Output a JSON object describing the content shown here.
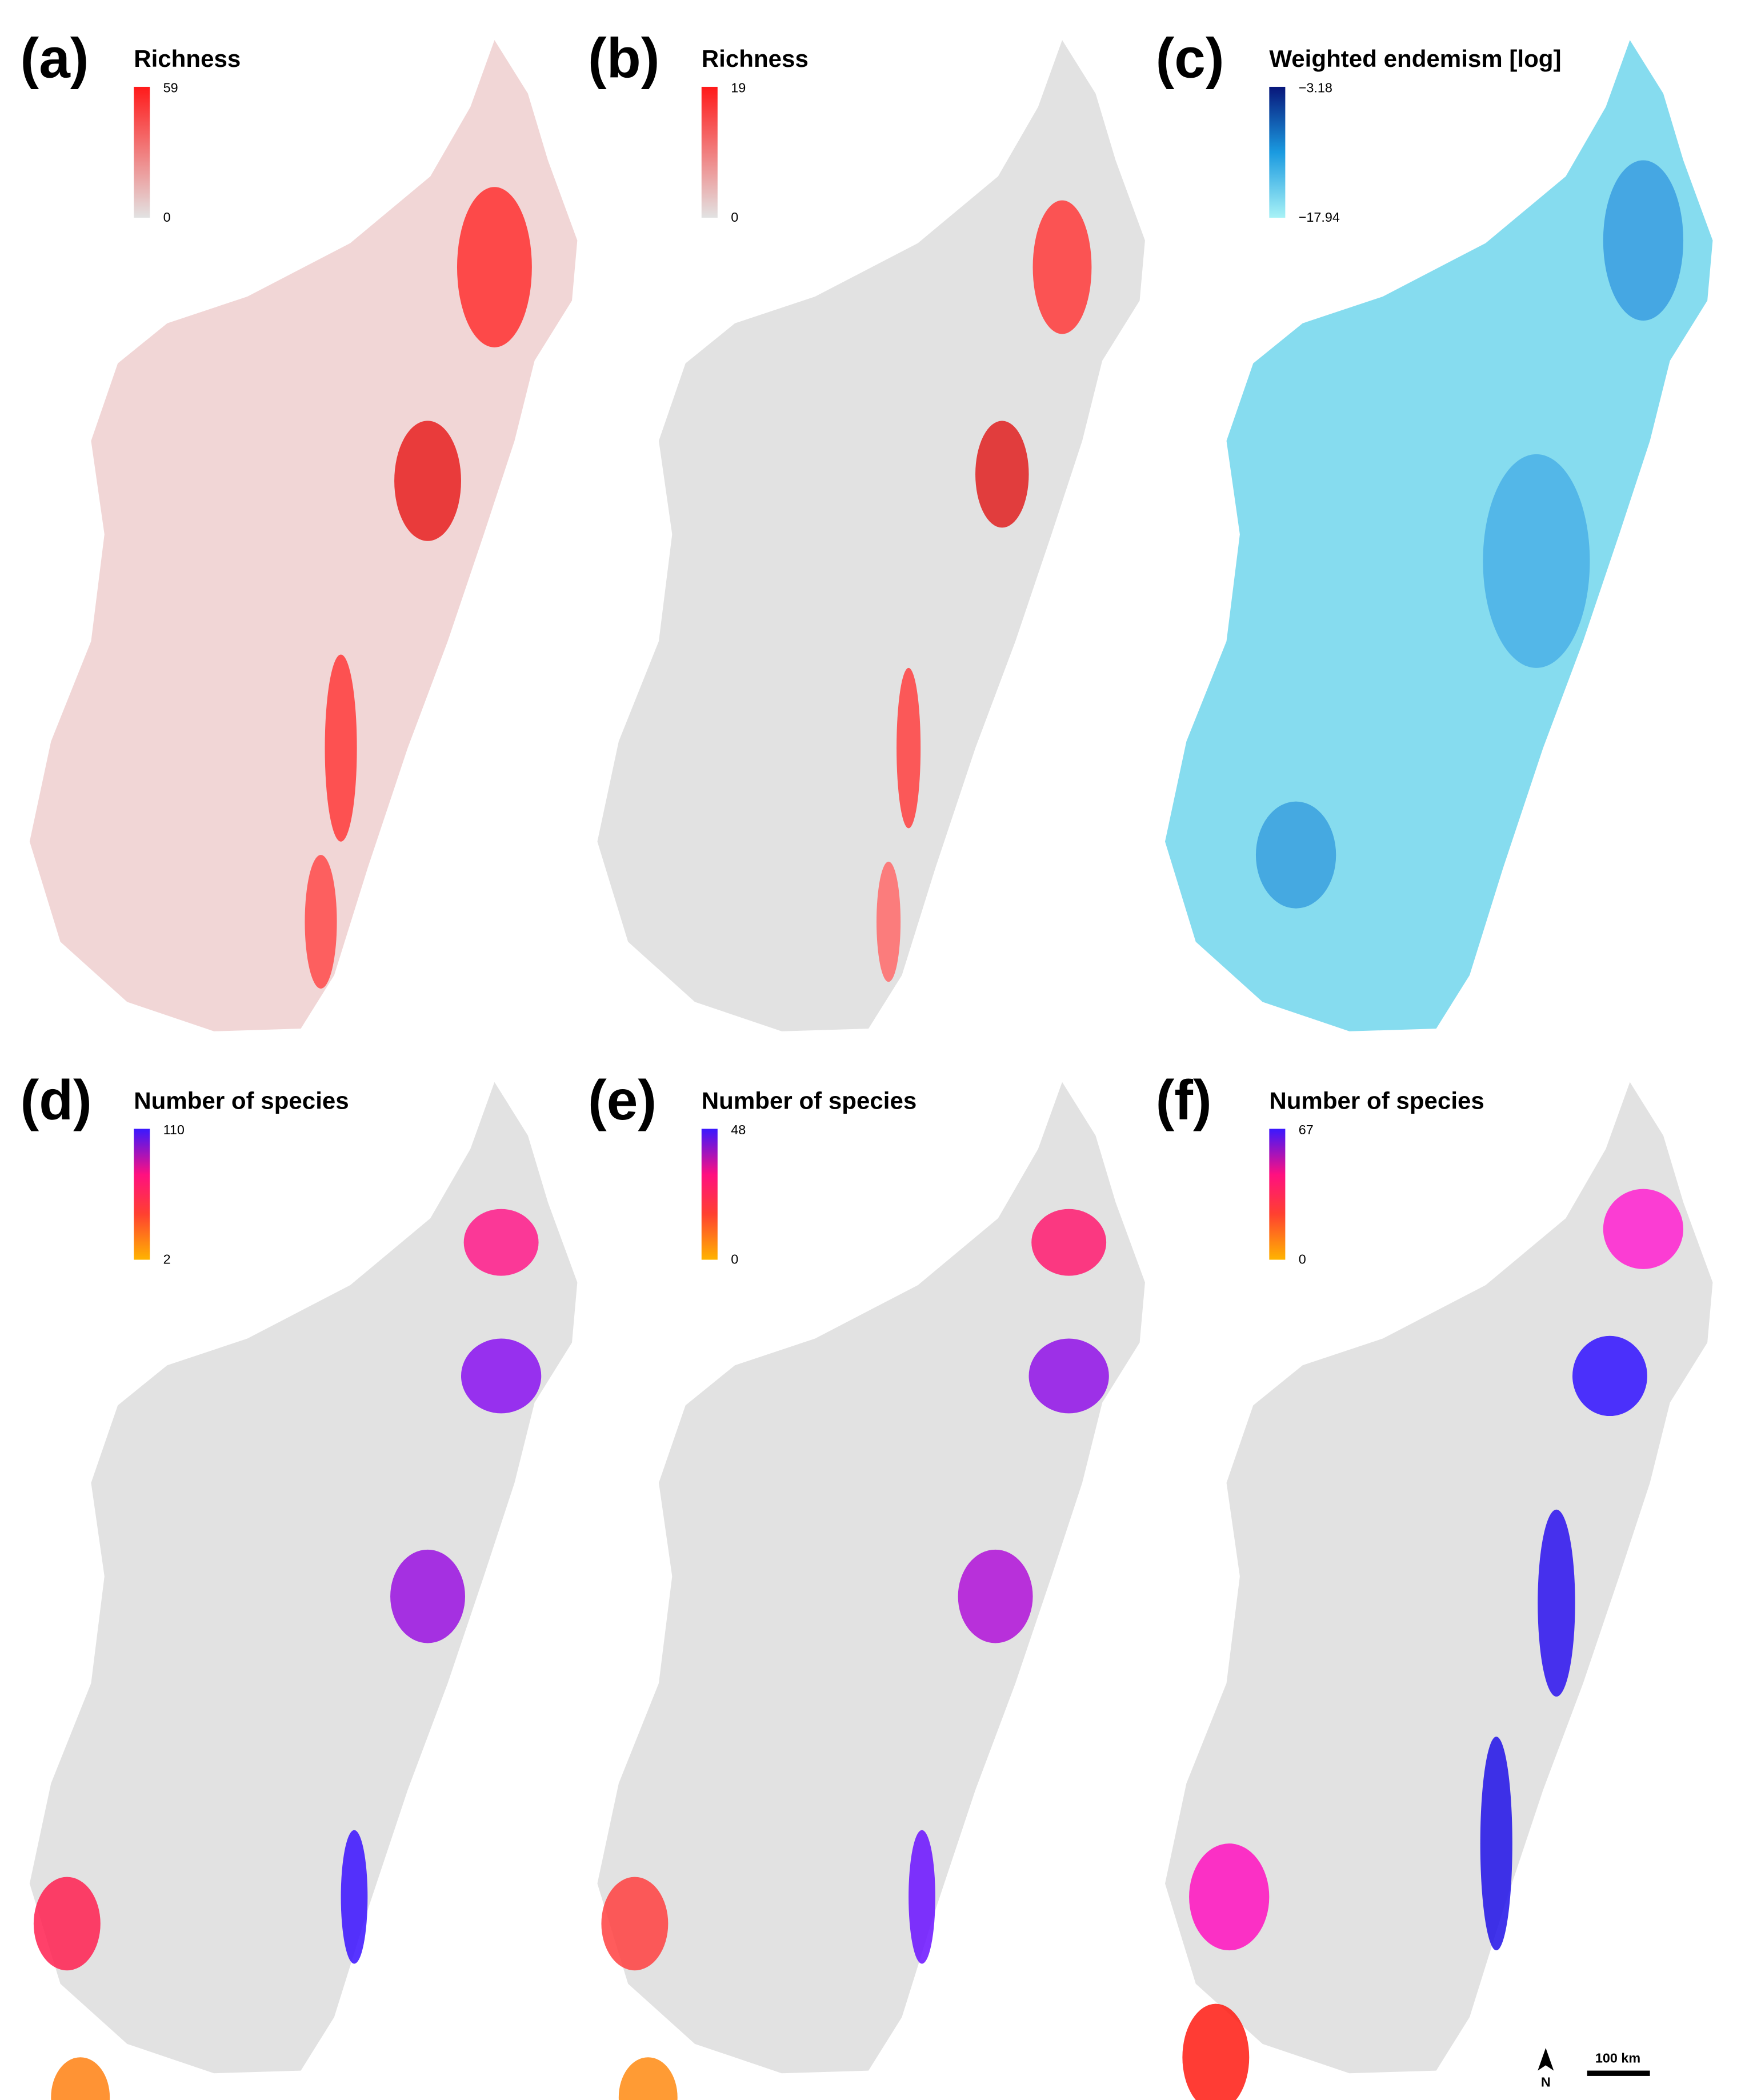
{
  "panels": [
    {
      "label": "(a)",
      "legend": {
        "title": "Richness",
        "max": "59",
        "min": "0"
      }
    },
    {
      "label": "(b)",
      "legend": {
        "title": "Richness",
        "max": "19",
        "min": "0"
      }
    },
    {
      "label": "(c)",
      "legend": {
        "title": "Weighted endemism [log]",
        "max": "−3.18",
        "min": "−17.94"
      }
    },
    {
      "label": "(d)",
      "legend": {
        "title": "Number of species",
        "max": "110",
        "min": "2"
      }
    },
    {
      "label": "(e)",
      "legend": {
        "title": "Number of species",
        "max": "48",
        "min": "0"
      }
    },
    {
      "label": "(f)",
      "legend": {
        "title": "Number of species",
        "max": "67",
        "min": "0"
      }
    }
  ],
  "scale_bar": "100 km",
  "north": "N"
}
